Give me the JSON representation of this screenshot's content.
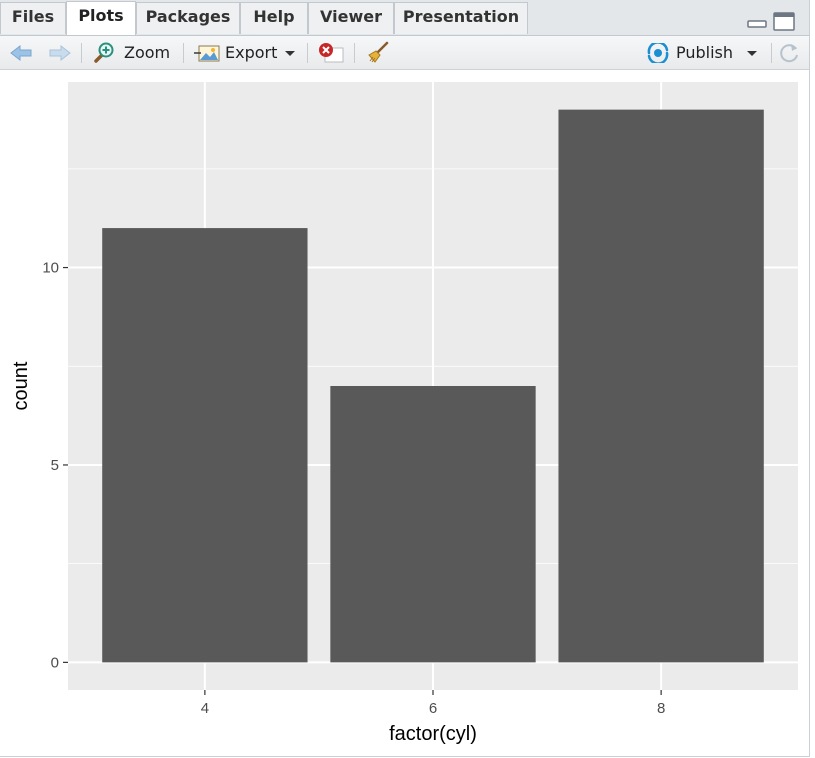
{
  "tabs": [
    {
      "label": "Files",
      "active": false
    },
    {
      "label": "Plots",
      "active": true
    },
    {
      "label": "Packages",
      "active": false
    },
    {
      "label": "Help",
      "active": false
    },
    {
      "label": "Viewer",
      "active": false
    },
    {
      "label": "Presentation",
      "active": false
    }
  ],
  "toolbar": {
    "zoom_label": "Zoom",
    "export_label": "Export",
    "publish_label": "Publish"
  },
  "icons": {
    "back": "arrow-left-icon",
    "forward": "arrow-right-icon",
    "zoom": "magnifier-icon",
    "export": "export-image-icon",
    "remove": "remove-plot-icon",
    "clear": "broom-icon",
    "publish": "publish-icon",
    "refresh": "refresh-icon",
    "minimize": "minimize-icon",
    "maximize": "maximize-icon"
  },
  "colors": {
    "panel_bg": "#ebebeb",
    "bar_fill": "#595959",
    "grid_major": "#ffffff",
    "accent_blue": "#1a8fd1",
    "remove_red": "#c62828"
  },
  "chart_data": {
    "type": "bar",
    "categories": [
      "4",
      "6",
      "8"
    ],
    "values": [
      11,
      7,
      14
    ],
    "xlabel": "factor(cyl)",
    "ylabel": "count",
    "yticks": [
      0,
      5,
      10
    ],
    "ylim": [
      -0.7,
      14.7
    ],
    "grid": true
  }
}
